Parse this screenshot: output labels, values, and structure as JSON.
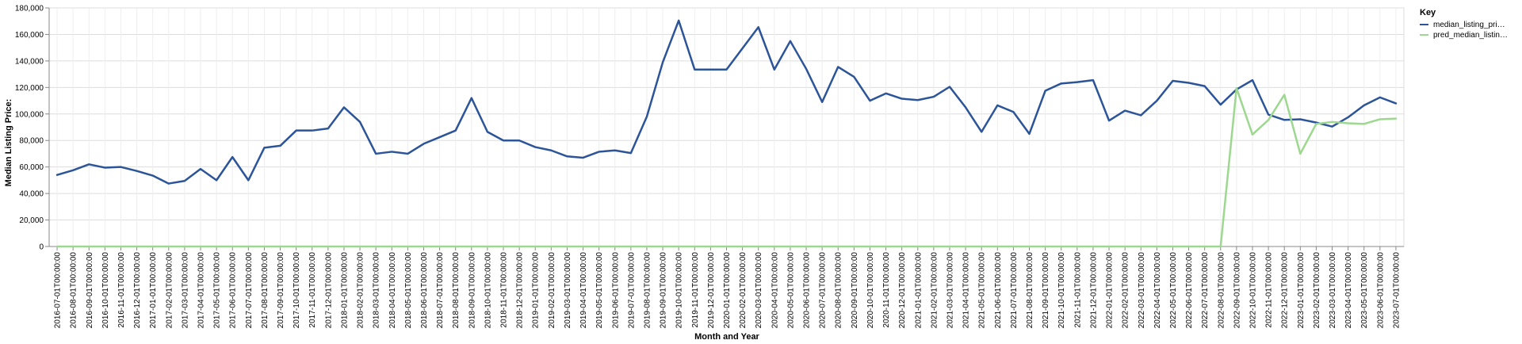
{
  "chart_data": {
    "type": "line",
    "title": "",
    "xlabel": "Month and Year",
    "ylabel": "Median Listing Price:",
    "ylim": [
      0,
      180000
    ],
    "yticks": [
      "0",
      "20,000",
      "40,000",
      "60,000",
      "80,000",
      "100,000",
      "120,000",
      "140,000",
      "160,000",
      "180,000"
    ],
    "grid": true,
    "legend": {
      "title": "Key",
      "placement": "right",
      "entries": [
        "median_listing_pri…",
        "pred_median_listin…"
      ]
    },
    "x": [
      "2016-07-01T00:00:00",
      "2016-08-01T00:00:00",
      "2016-09-01T00:00:00",
      "2016-10-01T00:00:00",
      "2016-11-01T00:00:00",
      "2016-12-01T00:00:00",
      "2017-01-01T00:00:00",
      "2017-02-01T00:00:00",
      "2017-03-01T00:00:00",
      "2017-04-01T00:00:00",
      "2017-05-01T00:00:00",
      "2017-06-01T00:00:00",
      "2017-07-01T00:00:00",
      "2017-08-01T00:00:00",
      "2017-09-01T00:00:00",
      "2017-10-01T00:00:00",
      "2017-11-01T00:00:00",
      "2017-12-01T00:00:00",
      "2018-01-01T00:00:00",
      "2018-02-01T00:00:00",
      "2018-03-01T00:00:00",
      "2018-04-01T00:00:00",
      "2018-05-01T00:00:00",
      "2018-06-01T00:00:00",
      "2018-07-01T00:00:00",
      "2018-08-01T00:00:00",
      "2018-09-01T00:00:00",
      "2018-10-01T00:00:00",
      "2018-11-01T00:00:00",
      "2018-12-01T00:00:00",
      "2019-01-01T00:00:00",
      "2019-02-01T00:00:00",
      "2019-03-01T00:00:00",
      "2019-04-01T00:00:00",
      "2019-05-01T00:00:00",
      "2019-06-01T00:00:00",
      "2019-07-01T00:00:00",
      "2019-08-01T00:00:00",
      "2019-09-01T00:00:00",
      "2019-10-01T00:00:00",
      "2019-11-01T00:00:00",
      "2019-12-01T00:00:00",
      "2020-01-01T00:00:00",
      "2020-02-01T00:00:00",
      "2020-03-01T00:00:00",
      "2020-04-01T00:00:00",
      "2020-05-01T00:00:00",
      "2020-06-01T00:00:00",
      "2020-07-01T00:00:00",
      "2020-08-01T00:00:00",
      "2020-09-01T00:00:00",
      "2020-10-01T00:00:00",
      "2020-11-01T00:00:00",
      "2020-12-01T00:00:00",
      "2021-01-01T00:00:00",
      "2021-02-01T00:00:00",
      "2021-03-01T00:00:00",
      "2021-04-01T00:00:00",
      "2021-05-01T00:00:00",
      "2021-06-01T00:00:00",
      "2021-07-01T00:00:00",
      "2021-08-01T00:00:00",
      "2021-09-01T00:00:00",
      "2021-10-01T00:00:00",
      "2021-11-01T00:00:00",
      "2021-12-01T00:00:00",
      "2022-01-01T00:00:00",
      "2022-02-01T00:00:00",
      "2022-03-01T00:00:00",
      "2022-04-01T00:00:00",
      "2022-05-01T00:00:00",
      "2022-06-01T00:00:00",
      "2022-07-01T00:00:00",
      "2022-08-01T00:00:00",
      "2022-09-01T00:00:00",
      "2022-10-01T00:00:00",
      "2022-11-01T00:00:00",
      "2022-12-01T00:00:00",
      "2023-01-01T00:00:00",
      "2023-02-01T00:00:00",
      "2023-03-01T00:00:00",
      "2023-04-01T00:00:00",
      "2023-05-01T00:00:00",
      "2023-06-01T00:00:00",
      "2023-07-01T00:00:00"
    ],
    "series": [
      {
        "name": "median_listing_pri…",
        "color": "#2c5499",
        "values": [
          54000,
          57500,
          62000,
          59500,
          60000,
          57000,
          53500,
          47500,
          49500,
          58500,
          50000,
          67500,
          50000,
          74500,
          76000,
          87500,
          87500,
          89000,
          105000,
          94000,
          70000,
          71500,
          70000,
          77500,
          82500,
          87500,
          112000,
          86500,
          80000,
          80000,
          75000,
          72500,
          68000,
          67000,
          71500,
          72500,
          70500,
          98000,
          139000,
          170500,
          133500,
          133500,
          133500,
          149500,
          165500,
          133500,
          155000,
          134000,
          109000,
          135500,
          128000,
          110000,
          115500,
          111500,
          110500,
          113000,
          120500,
          105000,
          86500,
          106500,
          101500,
          85000,
          117500,
          123000,
          124000,
          125500,
          95000,
          102500,
          99000,
          110000,
          125000,
          123500,
          121000,
          107000,
          118500,
          125500,
          99500,
          95500,
          96000,
          93500,
          90500,
          97500,
          106500,
          112500,
          108000
        ]
      },
      {
        "name": "pred_median_listin…",
        "color": "#9dd88f",
        "values": [
          0,
          0,
          0,
          0,
          0,
          0,
          0,
          0,
          0,
          0,
          0,
          0,
          0,
          0,
          0,
          0,
          0,
          0,
          0,
          0,
          0,
          0,
          0,
          0,
          0,
          0,
          0,
          0,
          0,
          0,
          0,
          0,
          0,
          0,
          0,
          0,
          0,
          0,
          0,
          0,
          0,
          0,
          0,
          0,
          0,
          0,
          0,
          0,
          0,
          0,
          0,
          0,
          0,
          0,
          0,
          0,
          0,
          0,
          0,
          0,
          0,
          0,
          0,
          0,
          0,
          0,
          0,
          0,
          0,
          0,
          0,
          0,
          0,
          0,
          119500,
          84500,
          95500,
          114500,
          70000,
          92500,
          94000,
          93000,
          92500,
          96000,
          96500
        ]
      }
    ]
  }
}
